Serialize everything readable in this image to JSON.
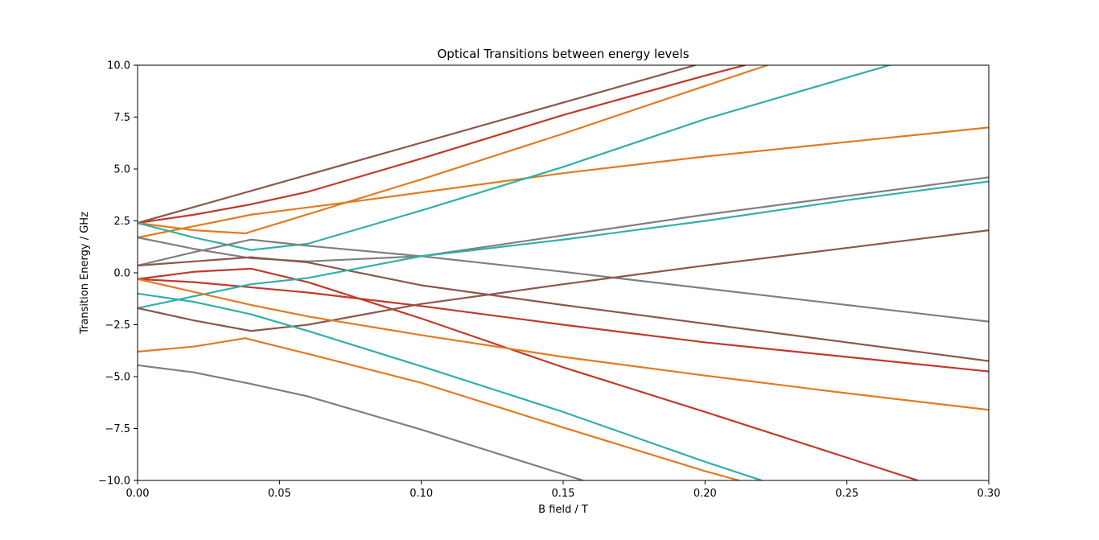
{
  "chart_data": {
    "type": "line",
    "title": "Optical Transitions between energy levels",
    "xlabel": "B field / T",
    "ylabel": "Transition Energy / GHz",
    "xlim": [
      0,
      0.3
    ],
    "ylim": [
      -10,
      10
    ],
    "xticks": [
      0.0,
      0.05,
      0.1,
      0.15,
      0.2,
      0.25,
      0.3
    ],
    "xtick_labels": [
      "0.00",
      "0.05",
      "0.10",
      "0.15",
      "0.20",
      "0.25",
      "0.30"
    ],
    "yticks": [
      -10,
      -7.5,
      -5,
      -2.5,
      0,
      2.5,
      5,
      7.5,
      10
    ],
    "ytick_labels": [
      "−10.0",
      "−7.5",
      "−5.0",
      "−2.5",
      "0.0",
      "2.5",
      "5.0",
      "7.5",
      "10.0"
    ],
    "grid": false,
    "legend": "none",
    "colors": {
      "brown": "#8c564b",
      "red": "#c0392b",
      "orange": "#e07b1f",
      "teal": "#2fb0a8",
      "gray": "#7f7f7f"
    },
    "series": [
      {
        "color": "brown",
        "x": [
          0,
          0.3
        ],
        "y": [
          2.4,
          14.0
        ]
      },
      {
        "color": "red",
        "x": [
          0,
          0.02,
          0.04,
          0.06,
          0.1,
          0.15,
          0.2,
          0.214
        ],
        "y": [
          2.4,
          2.8,
          3.3,
          3.9,
          5.5,
          7.6,
          9.5,
          10.0
        ]
      },
      {
        "color": "orange",
        "x": [
          0,
          0.02,
          0.038,
          0.05,
          0.1,
          0.15,
          0.2,
          0.222
        ],
        "y": [
          2.4,
          2.05,
          1.9,
          2.4,
          4.5,
          6.7,
          9.0,
          10.0
        ]
      },
      {
        "color": "orange",
        "x": [
          0,
          0.04,
          0.08,
          0.15,
          0.2,
          0.25,
          0.3
        ],
        "y": [
          1.7,
          2.8,
          3.5,
          4.8,
          5.6,
          6.3,
          7.0
        ]
      },
      {
        "color": "teal",
        "x": [
          0,
          0.02,
          0.04,
          0.06,
          0.1,
          0.15,
          0.2,
          0.25,
          0.265
        ],
        "y": [
          2.4,
          1.7,
          1.1,
          1.4,
          3.0,
          5.1,
          7.4,
          9.4,
          10.0
        ]
      },
      {
        "color": "gray",
        "x": [
          0,
          0.02,
          0.04,
          0.06,
          0.1,
          0.15,
          0.2,
          0.25,
          0.3
        ],
        "y": [
          1.7,
          1.15,
          0.7,
          0.55,
          0.8,
          1.8,
          2.8,
          3.7,
          4.6
        ]
      },
      {
        "color": "gray",
        "x": [
          0,
          0.02,
          0.04,
          0.06,
          0.1,
          0.15,
          0.2,
          0.25,
          0.3
        ],
        "y": [
          0.35,
          1.0,
          1.6,
          1.3,
          0.8,
          0.05,
          -0.75,
          -1.55,
          -2.35
        ]
      },
      {
        "color": "brown",
        "x": [
          0,
          0.02,
          0.04,
          0.06,
          0.1,
          0.15,
          0.2,
          0.25,
          0.3
        ],
        "y": [
          0.35,
          0.55,
          0.75,
          0.5,
          -0.6,
          -1.55,
          -2.45,
          -3.35,
          -4.25
        ]
      },
      {
        "color": "red",
        "x": [
          0,
          0.02,
          0.04,
          0.06,
          0.1,
          0.15,
          0.2,
          0.25,
          0.275
        ],
        "y": [
          -0.3,
          0.05,
          0.2,
          -0.45,
          -2.2,
          -4.55,
          -6.7,
          -8.9,
          -10.0
        ]
      },
      {
        "color": "red",
        "x": [
          0,
          0.02,
          0.04,
          0.06,
          0.1,
          0.15,
          0.2,
          0.25,
          0.3
        ],
        "y": [
          -0.3,
          -0.45,
          -0.7,
          -0.95,
          -1.6,
          -2.5,
          -3.35,
          -4.05,
          -4.75
        ]
      },
      {
        "color": "teal",
        "x": [
          0,
          0.04,
          0.06,
          0.1,
          0.15,
          0.2,
          0.25,
          0.3
        ],
        "y": [
          -1.7,
          -0.55,
          -0.25,
          0.8,
          1.6,
          2.5,
          3.5,
          4.4
        ]
      },
      {
        "color": "brown",
        "x": [
          0,
          0.02,
          0.04,
          0.06,
          0.1,
          0.15,
          0.2,
          0.25,
          0.3
        ],
        "y": [
          -1.7,
          -2.3,
          -2.8,
          -2.5,
          -1.5,
          -0.55,
          0.35,
          1.2,
          2.05
        ]
      },
      {
        "color": "orange",
        "x": [
          0,
          0.04,
          0.06,
          0.1,
          0.15,
          0.2,
          0.25,
          0.3
        ],
        "y": [
          -0.3,
          -1.55,
          -2.1,
          -3.0,
          -4.05,
          -4.95,
          -5.8,
          -6.6
        ]
      },
      {
        "color": "teal",
        "x": [
          0,
          0.02,
          0.04,
          0.06,
          0.1,
          0.15,
          0.2,
          0.22
        ],
        "y": [
          -1.0,
          -1.4,
          -2.0,
          -2.8,
          -4.5,
          -6.7,
          -9.1,
          -10.0
        ]
      },
      {
        "color": "orange",
        "x": [
          0,
          0.02,
          0.038,
          0.06,
          0.1,
          0.15,
          0.2,
          0.212
        ],
        "y": [
          -3.8,
          -3.55,
          -3.15,
          -3.9,
          -5.3,
          -7.45,
          -9.55,
          -10.0
        ]
      },
      {
        "color": "gray",
        "x": [
          0,
          0.02,
          0.04,
          0.06,
          0.1,
          0.15,
          0.157
        ],
        "y": [
          -4.45,
          -4.8,
          -5.35,
          -5.95,
          -7.55,
          -9.7,
          -10.0
        ]
      }
    ]
  }
}
